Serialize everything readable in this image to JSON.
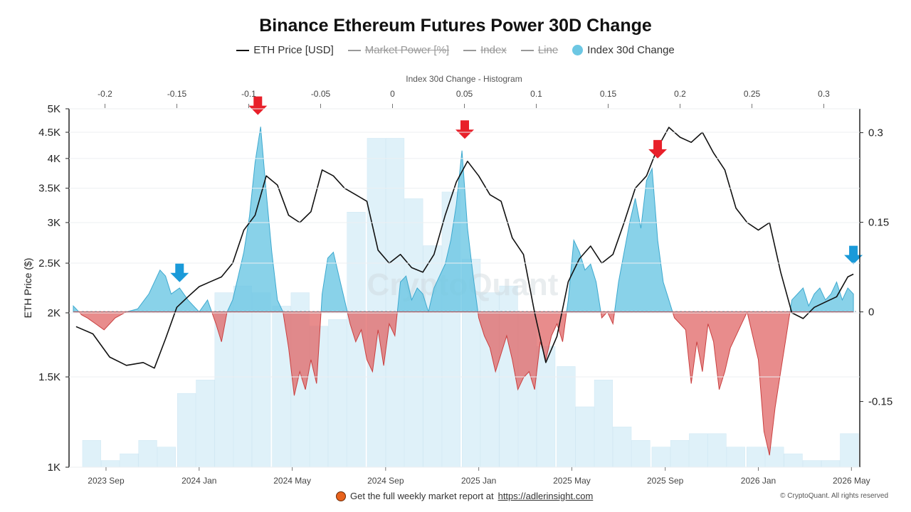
{
  "title": "Binance Ethereum Futures Power 30D Change",
  "legend": [
    {
      "label": "ETH Price [USD]",
      "kind": "line",
      "muted": false
    },
    {
      "label": "Market Power [%]",
      "kind": "line",
      "muted": true
    },
    {
      "label": "Index",
      "kind": "line",
      "muted": true
    },
    {
      "label": "Line",
      "kind": "line",
      "muted": true
    },
    {
      "label": "Index 30d Change",
      "kind": "dot",
      "muted": false
    }
  ],
  "footer": {
    "prefix": "Get the full weekly market report at",
    "link": "https://adlerinsight.com"
  },
  "copyright": "© CryptoQuant. All rights reserved",
  "watermark": "CryptoQuant",
  "colors": {
    "price": "#111111",
    "positive": "#6cc7e3",
    "negative": "#e06666",
    "histogram": "#dff1f9",
    "arrow_down_red": "#e8202a",
    "arrow_down_blue": "#1a9ad9"
  },
  "chart_data": {
    "type": "line",
    "left_axis": {
      "label": "ETH Price ($)",
      "ticks": [
        "1K",
        "1.5K",
        "2K",
        "2.5K",
        "3K",
        "3.5K",
        "4K",
        "4.5K",
        "5K"
      ],
      "tick_values": [
        1000,
        1500,
        2000,
        2500,
        3000,
        3500,
        4000,
        4500,
        5000
      ],
      "scale": "log",
      "range": [
        1000,
        5000
      ]
    },
    "right_axis": {
      "ticks": [
        "0.3",
        "0.15",
        "0",
        "-0.15"
      ],
      "tick_values": [
        0.3,
        0.15,
        0,
        -0.15
      ],
      "range": [
        -0.26,
        0.34
      ]
    },
    "top_axis": {
      "label": "Index 30d Change - Histogram",
      "ticks": [
        "-0.2",
        "-0.15",
        "-0.1",
        "-0.05",
        "0",
        "0.05",
        "0.1",
        "0.15",
        "0.2",
        "0.25",
        "0.3"
      ],
      "tick_values": [
        -0.2,
        -0.15,
        -0.1,
        -0.05,
        0,
        0.05,
        0.1,
        0.15,
        0.2,
        0.25,
        0.3
      ],
      "range": [
        -0.225,
        0.325
      ]
    },
    "x_axis": {
      "ticks": [
        "2023 Sep",
        "2024 Jan",
        "2024 May",
        "2024 Sep",
        "2025 Jan",
        "2025 May",
        "2025 Sep",
        "2026 Jan",
        "2026 May"
      ],
      "tick_values": [
        2023.667,
        2024.0,
        2024.333,
        2024.667,
        2025.0,
        2025.333,
        2025.667,
        2026.0,
        2026.333
      ],
      "range": [
        2023.55,
        2026.35
      ]
    },
    "series": [
      {
        "name": "ETH Price [USD]",
        "axis": "left",
        "x": [
          2023.56,
          2023.62,
          2023.68,
          2023.74,
          2023.8,
          2023.84,
          2023.88,
          2023.92,
          2023.96,
          2024.0,
          2024.04,
          2024.08,
          2024.12,
          2024.16,
          2024.2,
          2024.24,
          2024.28,
          2024.32,
          2024.36,
          2024.4,
          2024.44,
          2024.48,
          2024.52,
          2024.56,
          2024.6,
          2024.64,
          2024.68,
          2024.72,
          2024.76,
          2024.8,
          2024.84,
          2024.88,
          2024.92,
          2024.96,
          2025.0,
          2025.04,
          2025.08,
          2025.12,
          2025.16,
          2025.2,
          2025.24,
          2025.28,
          2025.32,
          2025.36,
          2025.4,
          2025.44,
          2025.48,
          2025.52,
          2025.56,
          2025.6,
          2025.64,
          2025.68,
          2025.72,
          2025.76,
          2025.8,
          2025.84,
          2025.88,
          2025.92,
          2025.96,
          2026.0,
          2026.04,
          2026.08,
          2026.12,
          2026.16,
          2026.2,
          2026.24,
          2026.28,
          2026.32,
          2026.34
        ],
        "values": [
          1880,
          1820,
          1640,
          1580,
          1600,
          1560,
          1780,
          2050,
          2150,
          2250,
          2300,
          2350,
          2500,
          2900,
          3100,
          3700,
          3550,
          3100,
          3000,
          3150,
          3800,
          3700,
          3500,
          3400,
          3300,
          2650,
          2500,
          2600,
          2450,
          2400,
          2600,
          3100,
          3600,
          3950,
          3700,
          3400,
          3300,
          2800,
          2600,
          2000,
          1600,
          1800,
          2300,
          2550,
          2700,
          2500,
          2600,
          3000,
          3500,
          3700,
          4200,
          4600,
          4400,
          4300,
          4500,
          4100,
          3800,
          3200,
          3000,
          2900,
          3000,
          2400,
          2000,
          1950,
          2050,
          2100,
          2150,
          2350,
          2380
        ]
      },
      {
        "name": "Index 30d Change",
        "axis": "right",
        "x": [
          2023.55,
          2023.58,
          2023.6,
          2023.63,
          2023.66,
          2023.7,
          2023.74,
          2023.78,
          2023.82,
          2023.86,
          2023.88,
          2023.9,
          2023.93,
          2023.96,
          2024.0,
          2024.03,
          2024.06,
          2024.08,
          2024.1,
          2024.12,
          2024.14,
          2024.16,
          2024.18,
          2024.2,
          2024.22,
          2024.24,
          2024.26,
          2024.28,
          2024.3,
          2024.32,
          2024.34,
          2024.36,
          2024.38,
          2024.4,
          2024.42,
          2024.44,
          2024.46,
          2024.48,
          2024.5,
          2024.52,
          2024.54,
          2024.56,
          2024.58,
          2024.6,
          2024.62,
          2024.64,
          2024.66,
          2024.68,
          2024.7,
          2024.72,
          2024.74,
          2024.76,
          2024.78,
          2024.8,
          2024.82,
          2024.84,
          2024.86,
          2024.88,
          2024.9,
          2024.92,
          2024.94,
          2024.96,
          2024.98,
          2025.0,
          2025.02,
          2025.04,
          2025.06,
          2025.08,
          2025.1,
          2025.12,
          2025.14,
          2025.16,
          2025.18,
          2025.2,
          2025.22,
          2025.24,
          2025.26,
          2025.28,
          2025.3,
          2025.32,
          2025.34,
          2025.36,
          2025.38,
          2025.4,
          2025.42,
          2025.44,
          2025.46,
          2025.48,
          2025.5,
          2025.52,
          2025.54,
          2025.56,
          2025.58,
          2025.6,
          2025.62,
          2025.64,
          2025.66,
          2025.68,
          2025.7,
          2025.72,
          2025.74,
          2025.76,
          2025.78,
          2025.8,
          2025.82,
          2025.84,
          2025.86,
          2025.88,
          2025.9,
          2025.92,
          2025.94,
          2025.96,
          2025.98,
          2026.0,
          2026.02,
          2026.04,
          2026.06,
          2026.08,
          2026.1,
          2026.12,
          2026.14,
          2026.16,
          2026.18,
          2026.2,
          2026.22,
          2026.24,
          2026.26,
          2026.28,
          2026.3,
          2026.32,
          2026.34
        ],
        "values": [
          0.01,
          -0.005,
          -0.01,
          -0.02,
          -0.03,
          -0.01,
          0.0,
          0.005,
          0.03,
          0.07,
          0.06,
          0.03,
          0.04,
          0.02,
          0.0,
          0.02,
          -0.02,
          -0.05,
          0.0,
          0.02,
          0.06,
          0.1,
          0.16,
          0.25,
          0.31,
          0.2,
          0.1,
          0.02,
          0.0,
          -0.06,
          -0.14,
          -0.1,
          -0.13,
          -0.08,
          -0.12,
          0.03,
          0.09,
          0.1,
          0.06,
          0.02,
          -0.02,
          -0.05,
          -0.03,
          -0.08,
          -0.1,
          -0.03,
          -0.09,
          -0.02,
          -0.04,
          0.05,
          0.06,
          0.02,
          0.04,
          0.03,
          0.0,
          0.04,
          0.06,
          0.08,
          0.12,
          0.18,
          0.27,
          0.14,
          0.06,
          -0.01,
          -0.04,
          -0.06,
          -0.1,
          -0.07,
          -0.04,
          -0.08,
          -0.13,
          -0.11,
          -0.1,
          -0.13,
          -0.05,
          -0.08,
          -0.04,
          -0.02,
          -0.05,
          0.02,
          0.12,
          0.1,
          0.07,
          0.08,
          0.05,
          -0.01,
          0.0,
          -0.02,
          0.05,
          0.1,
          0.15,
          0.19,
          0.14,
          0.22,
          0.24,
          0.12,
          0.05,
          0.02,
          -0.01,
          -0.02,
          -0.03,
          -0.12,
          -0.05,
          -0.1,
          -0.02,
          -0.05,
          -0.13,
          -0.1,
          -0.06,
          -0.04,
          -0.02,
          0.0,
          -0.04,
          -0.08,
          -0.2,
          -0.24,
          -0.16,
          -0.1,
          -0.04,
          0.02,
          0.03,
          0.04,
          0.01,
          0.03,
          0.04,
          0.02,
          0.03,
          0.05,
          0.02,
          0.04,
          0.03
        ]
      },
      {
        "name": "Index 30d Change - Histogram",
        "axis": "top",
        "bin_width": 0.0132,
        "x": [
          -0.209,
          -0.196,
          -0.183,
          -0.17,
          -0.157,
          -0.143,
          -0.13,
          -0.117,
          -0.104,
          -0.091,
          -0.077,
          -0.064,
          -0.051,
          -0.038,
          -0.025,
          -0.011,
          0.002,
          0.015,
          0.028,
          0.041,
          0.055,
          0.068,
          0.081,
          0.094,
          0.107,
          0.121,
          0.134,
          0.147,
          0.16,
          0.173,
          0.187,
          0.2,
          0.213,
          0.226,
          0.239,
          0.253,
          0.266,
          0.279,
          0.292,
          0.305,
          0.318
        ],
        "values": [
          4,
          1,
          2,
          4,
          3,
          11,
          13,
          26,
          27,
          26,
          24,
          26,
          21,
          22,
          38,
          49,
          49,
          40,
          33,
          41,
          31,
          26,
          27,
          23,
          18,
          15,
          9,
          13,
          6,
          4,
          3,
          4,
          5,
          5,
          3,
          3,
          3,
          2,
          1,
          1,
          5
        ]
      }
    ],
    "annotations": [
      {
        "type": "arrow-down",
        "color": "blue",
        "x": 2023.93,
        "value": 0.045
      },
      {
        "type": "arrow-down",
        "color": "red",
        "x": 2024.21,
        "value": 0.325
      },
      {
        "type": "arrow-down",
        "color": "red",
        "x": 2024.95,
        "value": 0.285
      },
      {
        "type": "arrow-down",
        "color": "red",
        "x": 2025.64,
        "value": 0.252
      },
      {
        "type": "arrow-down",
        "color": "blue",
        "x": 2026.34,
        "value": 0.075
      }
    ]
  }
}
